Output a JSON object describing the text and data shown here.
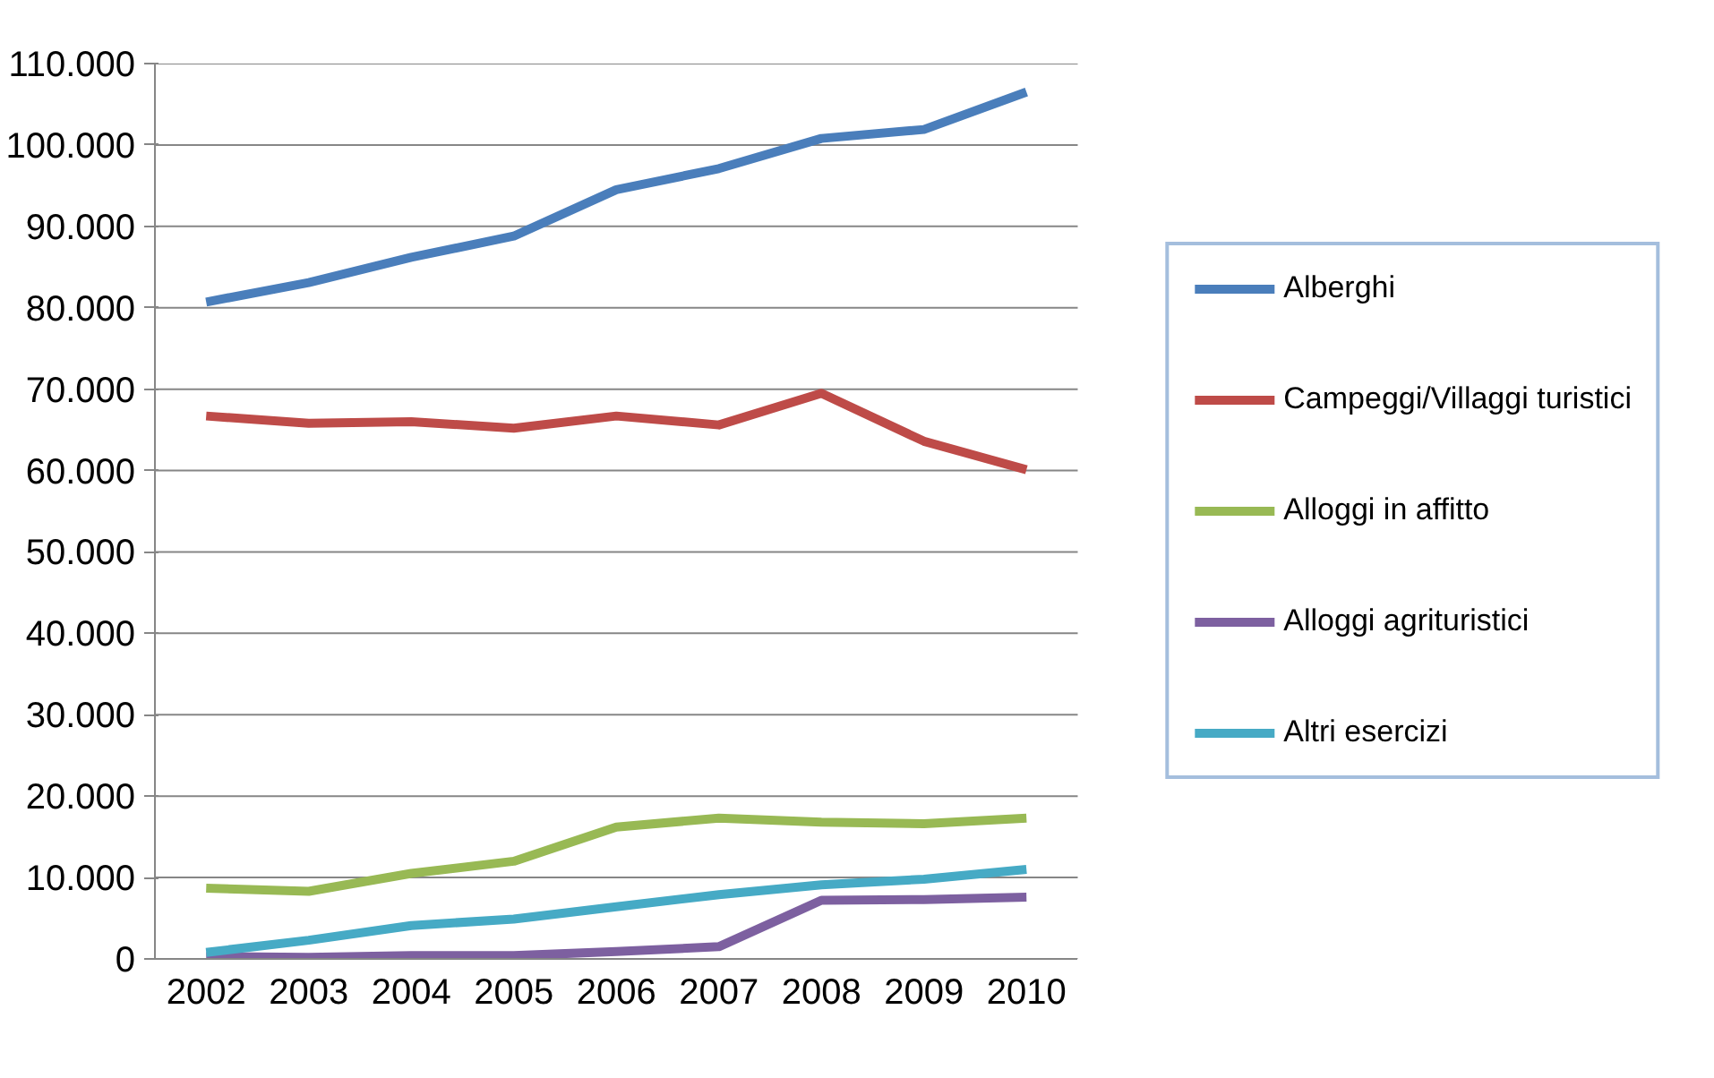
{
  "chart_data": {
    "type": "line",
    "categories": [
      "2002",
      "2003",
      "2004",
      "2005",
      "2006",
      "2007",
      "2008",
      "2009",
      "2010"
    ],
    "series": [
      {
        "name": "Alberghi",
        "color": "#4a7ebb",
        "values": [
          80700,
          83100,
          86200,
          88800,
          94500,
          97100,
          100800,
          101900,
          106500
        ]
      },
      {
        "name": "Campeggi/Villaggi turistici",
        "color": "#be4b48",
        "values": [
          66700,
          65800,
          66000,
          65200,
          66700,
          65600,
          69500,
          63600,
          60100
        ]
      },
      {
        "name": "Alloggi in affitto",
        "color": "#98b954",
        "values": [
          8700,
          8300,
          10500,
          12000,
          16200,
          17300,
          16800,
          16600,
          17300
        ]
      },
      {
        "name": "Alloggi agrituristici",
        "color": "#7d60a0",
        "values": [
          300,
          200,
          400,
          400,
          900,
          1500,
          7200,
          7300,
          7600
        ]
      },
      {
        "name": "Altri esercizi",
        "color": "#46aac5",
        "values": [
          800,
          2300,
          4100,
          4900,
          6400,
          7900,
          9100,
          9800,
          11000
        ]
      }
    ],
    "ylim": [
      0,
      110000
    ],
    "yticks": [
      {
        "value": 0,
        "label": "0"
      },
      {
        "value": 10000,
        "label": "10.000"
      },
      {
        "value": 20000,
        "label": "20.000"
      },
      {
        "value": 30000,
        "label": "30.000"
      },
      {
        "value": 40000,
        "label": "40.000"
      },
      {
        "value": 50000,
        "label": "50.000"
      },
      {
        "value": 60000,
        "label": "60.000"
      },
      {
        "value": 70000,
        "label": "70.000"
      },
      {
        "value": 80000,
        "label": "80.000"
      },
      {
        "value": 90000,
        "label": "90.000"
      },
      {
        "value": 100000,
        "label": "100.000"
      },
      {
        "value": 110000,
        "label": "110.000"
      }
    ],
    "grid": "y",
    "legend": "right",
    "marker": "none",
    "line_style": "solid"
  }
}
